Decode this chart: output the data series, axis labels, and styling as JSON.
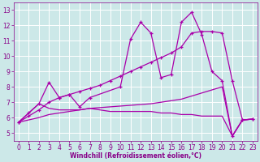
{
  "background_color": "#cce8e8",
  "line_color": "#aa00aa",
  "grid_color": "#ffffff",
  "xlabel": "Windchill (Refroidissement éolien,°C)",
  "xlim": [
    -0.5,
    23.5
  ],
  "ylim": [
    4.5,
    13.5
  ],
  "xticks": [
    0,
    1,
    2,
    3,
    4,
    5,
    6,
    7,
    8,
    9,
    10,
    11,
    12,
    13,
    14,
    15,
    16,
    17,
    18,
    19,
    20,
    21,
    22,
    23
  ],
  "yticks": [
    5,
    6,
    7,
    8,
    9,
    10,
    11,
    12,
    13
  ],
  "line1_x": [
    0,
    1,
    2,
    3,
    4,
    5,
    6,
    7,
    10,
    11,
    12,
    13,
    14,
    15,
    16,
    17,
    18,
    19,
    20,
    21,
    22,
    23
  ],
  "line1_y": [
    5.7,
    6.3,
    6.9,
    8.3,
    7.3,
    7.5,
    6.7,
    7.3,
    8.0,
    11.1,
    12.2,
    11.5,
    8.6,
    8.8,
    12.2,
    12.85,
    11.4,
    9.0,
    8.4,
    4.8,
    5.85,
    5.9
  ],
  "line2_x": [
    0,
    1,
    2,
    3,
    4,
    5,
    6,
    7,
    8,
    9,
    10,
    11,
    12,
    13,
    14,
    15,
    16,
    17,
    18,
    19,
    20,
    21,
    22,
    23
  ],
  "line2_y": [
    5.7,
    6.3,
    6.9,
    6.6,
    6.5,
    6.5,
    6.5,
    6.6,
    6.5,
    6.4,
    6.4,
    6.4,
    6.4,
    6.4,
    6.3,
    6.3,
    6.2,
    6.2,
    6.1,
    6.1,
    6.1,
    4.8,
    5.85,
    5.9
  ],
  "line3_x": [
    0,
    1,
    2,
    3,
    4,
    5,
    6,
    7,
    8,
    9,
    10,
    11,
    12,
    13,
    14,
    15,
    16,
    17,
    18,
    19,
    20,
    21,
    22,
    23
  ],
  "line3_y": [
    5.7,
    6.1,
    6.5,
    7.0,
    7.3,
    7.5,
    7.7,
    7.9,
    8.1,
    8.4,
    8.7,
    9.0,
    9.3,
    9.6,
    9.9,
    10.2,
    10.6,
    11.5,
    11.6,
    11.6,
    11.5,
    8.4,
    5.85,
    5.9
  ],
  "line4_x": [
    0,
    1,
    2,
    3,
    4,
    5,
    6,
    7,
    8,
    9,
    10,
    11,
    12,
    13,
    14,
    15,
    16,
    17,
    18,
    19,
    20,
    21,
    22,
    23
  ],
  "line4_y": [
    5.7,
    5.85,
    6.0,
    6.2,
    6.3,
    6.4,
    6.5,
    6.6,
    6.65,
    6.7,
    6.75,
    6.8,
    6.85,
    6.9,
    7.0,
    7.1,
    7.2,
    7.4,
    7.6,
    7.8,
    8.0,
    4.8,
    5.85,
    5.9
  ],
  "tick_fontsize": 5.5,
  "xlabel_fontsize": 5.5,
  "tick_color": "#880088",
  "spine_color": "#880088"
}
